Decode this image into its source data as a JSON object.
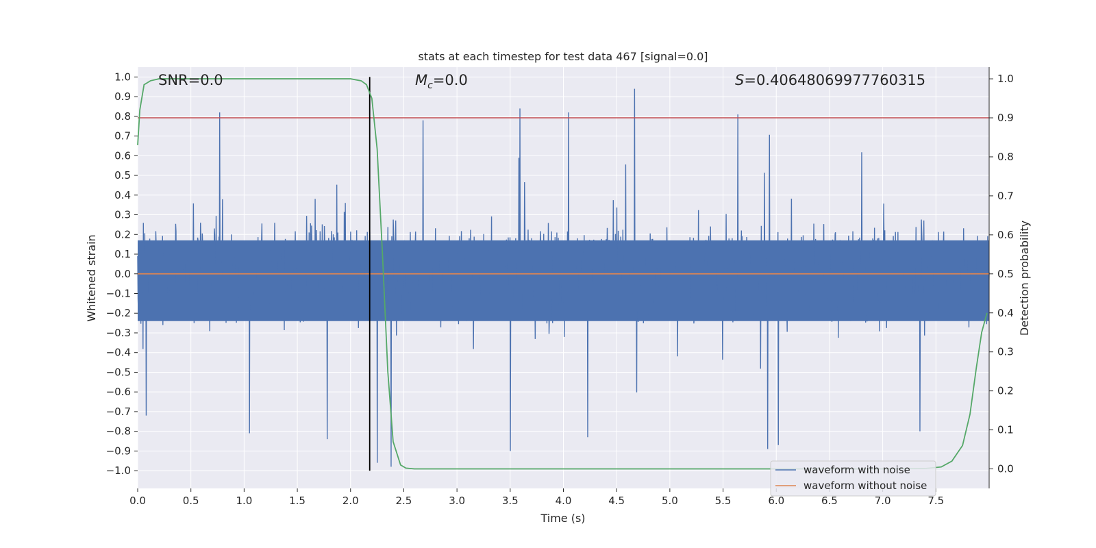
{
  "chart_data": {
    "type": "line",
    "title": "stats at each timestep for test data 467 [signal=0.0]",
    "xlabel": "Time (s)",
    "ylabel": "Whitened strain",
    "y2label": "Detection probability",
    "xlim": [
      0.0,
      8.0
    ],
    "ylim": [
      -1.09,
      1.05
    ],
    "y2lim": [
      -0.05,
      1.03
    ],
    "xticks": [
      0.0,
      0.5,
      1.0,
      1.5,
      2.0,
      2.5,
      3.0,
      3.5,
      4.0,
      4.5,
      5.0,
      5.5,
      6.0,
      6.5,
      7.0,
      7.5
    ],
    "xtick_labels": [
      "0.0",
      "0.5",
      "1.0",
      "1.5",
      "2.0",
      "2.5",
      "3.0",
      "3.5",
      "4.0",
      "4.5",
      "5.0",
      "5.5",
      "6.0",
      "6.5",
      "7.0",
      "7.5"
    ],
    "yticks": [
      1.0,
      0.9,
      0.8,
      0.7,
      0.6,
      0.5,
      0.4,
      0.3,
      0.2,
      0.1,
      0.0,
      -0.1,
      -0.2,
      -0.3,
      -0.4,
      -0.5,
      -0.6,
      -0.7,
      -0.8,
      -0.9,
      -1.0
    ],
    "ytick_labels": [
      "1.0",
      "0.9",
      "0.8",
      "0.7",
      "0.6",
      "0.5",
      "0.4",
      "0.3",
      "0.2",
      "0.1",
      "0.0",
      "−0.1",
      "−0.2",
      "−0.3",
      "−0.4",
      "−0.5",
      "−0.6",
      "−0.7",
      "−0.8",
      "−0.9",
      "−1.0"
    ],
    "y2ticks": [
      1.0,
      0.9,
      0.8,
      0.7,
      0.6,
      0.5,
      0.4,
      0.3,
      0.2,
      0.1,
      0.0
    ],
    "y2tick_labels": [
      "1.0",
      "0.9",
      "0.8",
      "0.7",
      "0.6",
      "0.5",
      "0.4",
      "0.3",
      "0.2",
      "0.1",
      "0.0"
    ],
    "grid": true,
    "annotations": {
      "snr": "SNR=0.0",
      "mc_symbol": "M",
      "mc_subscript": "c",
      "mc_value": "=0.0",
      "s_symbol": "S",
      "s_value": "=0.40648069977760315"
    },
    "series": [
      {
        "name": "waveform with noise",
        "axis": "left",
        "color": "#4c72b0",
        "description": "dense whitened noise, approx range -0.98 to 0.94",
        "peaks": [
          {
            "x": 0.08,
            "y": -0.72
          },
          {
            "x": 0.77,
            "y": 0.82
          },
          {
            "x": 1.05,
            "y": -0.81
          },
          {
            "x": 1.78,
            "y": -0.84
          },
          {
            "x": 2.25,
            "y": -0.96
          },
          {
            "x": 2.38,
            "y": -0.98
          },
          {
            "x": 2.68,
            "y": 0.78
          },
          {
            "x": 3.59,
            "y": 0.84
          },
          {
            "x": 3.5,
            "y": -0.9
          },
          {
            "x": 4.05,
            "y": 0.82
          },
          {
            "x": 4.23,
            "y": -0.83
          },
          {
            "x": 4.67,
            "y": 0.94
          },
          {
            "x": 5.64,
            "y": 0.81
          },
          {
            "x": 5.92,
            "y": -0.89
          },
          {
            "x": 6.02,
            "y": -0.87
          },
          {
            "x": 7.35,
            "y": -0.8
          }
        ]
      },
      {
        "name": "waveform without noise",
        "axis": "left",
        "color": "#dd8452",
        "x": [
          0.0,
          8.0
        ],
        "values": [
          0.0,
          0.0
        ]
      },
      {
        "name": "detection probability",
        "axis": "right",
        "color": "#55a868",
        "x": [
          0.0,
          0.02,
          0.06,
          0.12,
          0.2,
          0.4,
          0.8,
          1.2,
          1.6,
          2.0,
          2.1,
          2.15,
          2.2,
          2.25,
          2.3,
          2.35,
          2.4,
          2.47,
          2.52,
          2.6,
          3.0,
          4.0,
          5.0,
          6.0,
          7.0,
          7.4,
          7.55,
          7.65,
          7.75,
          7.82,
          7.88,
          7.93,
          7.98
        ],
        "values": [
          0.83,
          0.92,
          0.985,
          0.995,
          1.0,
          1.0,
          1.0,
          1.0,
          1.0,
          1.0,
          0.995,
          0.985,
          0.95,
          0.82,
          0.55,
          0.25,
          0.07,
          0.01,
          0.002,
          0.0,
          0.0,
          0.0,
          0.0,
          0.0,
          0.0,
          0.001,
          0.005,
          0.02,
          0.06,
          0.14,
          0.26,
          0.35,
          0.4
        ]
      }
    ],
    "threshold": {
      "axis": "right",
      "value": 0.9,
      "color": "#c44e52"
    },
    "marker_line": {
      "x": 2.18,
      "from": -1.0,
      "to": 1.0,
      "color": "#000000"
    },
    "legend": {
      "position": "bottom-right",
      "entries": [
        {
          "label": "waveform with noise",
          "color": "#4c72b0"
        },
        {
          "label": "waveform without noise",
          "color": "#dd8452"
        }
      ]
    },
    "colors": {
      "background": "#eaeaf2",
      "grid": "#ffffff"
    }
  }
}
